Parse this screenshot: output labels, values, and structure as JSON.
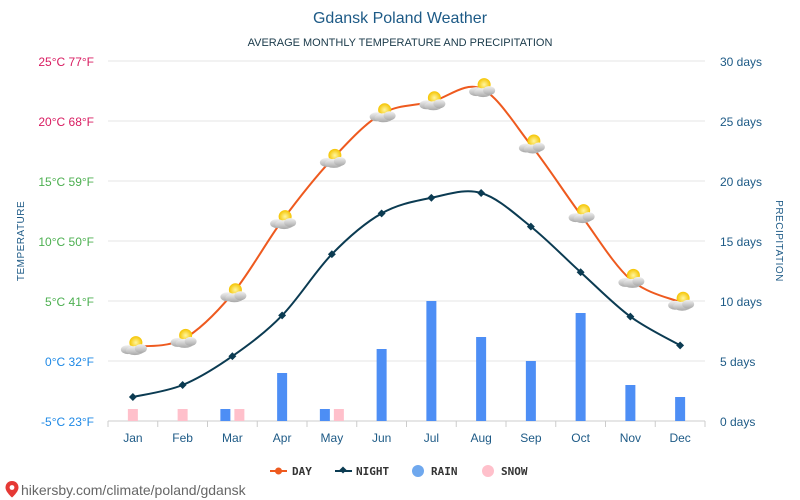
{
  "chart_data": {
    "type": "line",
    "title": "Gdansk Poland Weather",
    "subtitle": "AVERAGE MONTHLY TEMPERATURE AND PRECIPITATION",
    "ylabel_left": "TEMPERATURE",
    "ylabel_right": "PRECIPITATION",
    "categories": [
      "Jan",
      "Feb",
      "Mar",
      "Apr",
      "May",
      "Jun",
      "Jul",
      "Aug",
      "Sep",
      "Oct",
      "Nov",
      "Dec"
    ],
    "ylim_left": [
      -5,
      25
    ],
    "ylim_right": [
      0,
      30
    ],
    "left_ticks": [
      {
        "value": 25,
        "label": "25°C 77°F",
        "color": "#d81b60"
      },
      {
        "value": 20,
        "label": "20°C 68°F",
        "color": "#d81b60"
      },
      {
        "value": 15,
        "label": "15°C 59°F",
        "color": "#4caf50"
      },
      {
        "value": 10,
        "label": "10°C 50°F",
        "color": "#4caf50"
      },
      {
        "value": 5,
        "label": "5°C 41°F",
        "color": "#4caf50"
      },
      {
        "value": 0,
        "label": "0°C 32°F",
        "color": "#1e88e5"
      },
      {
        "value": -5,
        "label": "-5°C 23°F",
        "color": "#1e88e5"
      }
    ],
    "right_ticks": [
      {
        "value": 30,
        "label": "30 days"
      },
      {
        "value": 25,
        "label": "25 days"
      },
      {
        "value": 20,
        "label": "20 days"
      },
      {
        "value": 15,
        "label": "15 days"
      },
      {
        "value": 10,
        "label": "10 days"
      },
      {
        "value": 5,
        "label": "5 days"
      },
      {
        "value": 0,
        "label": "0 days"
      }
    ],
    "grid": true,
    "legend_position": "bottom",
    "series": [
      {
        "name": "DAY",
        "type": "line",
        "axis": "left",
        "color": "#ee5a1f",
        "values": [
          1.2,
          1.8,
          5.6,
          11.7,
          16.8,
          20.6,
          21.6,
          22.7,
          18.0,
          12.2,
          6.8,
          4.9
        ]
      },
      {
        "name": "NIGHT",
        "type": "line",
        "axis": "left",
        "color": "#0b3b52",
        "values": [
          -3.0,
          -2.0,
          0.4,
          3.8,
          8.9,
          12.3,
          13.6,
          14.0,
          11.2,
          7.4,
          3.7,
          1.3
        ]
      },
      {
        "name": "RAIN",
        "type": "bar",
        "axis": "right",
        "color": "#4d8ef5",
        "legend_color": "#6fa8ee",
        "values": [
          0,
          0,
          1,
          4,
          1,
          6,
          10,
          7,
          5,
          9,
          3,
          2
        ]
      },
      {
        "name": "SNOW",
        "type": "bar",
        "axis": "right",
        "color": "#ffc0cb",
        "values": [
          1,
          1,
          1,
          0,
          1,
          0,
          0,
          0,
          0,
          0,
          0,
          0
        ]
      }
    ]
  },
  "source_label": "hikersby.com/climate/poland/gdansk",
  "icons": {
    "weather": "partly-cloudy-icon",
    "source": "location-pin-icon"
  },
  "colors": {
    "brand": "#1d5a86",
    "grid": "#e6e6e6",
    "pin": "#e53935"
  }
}
